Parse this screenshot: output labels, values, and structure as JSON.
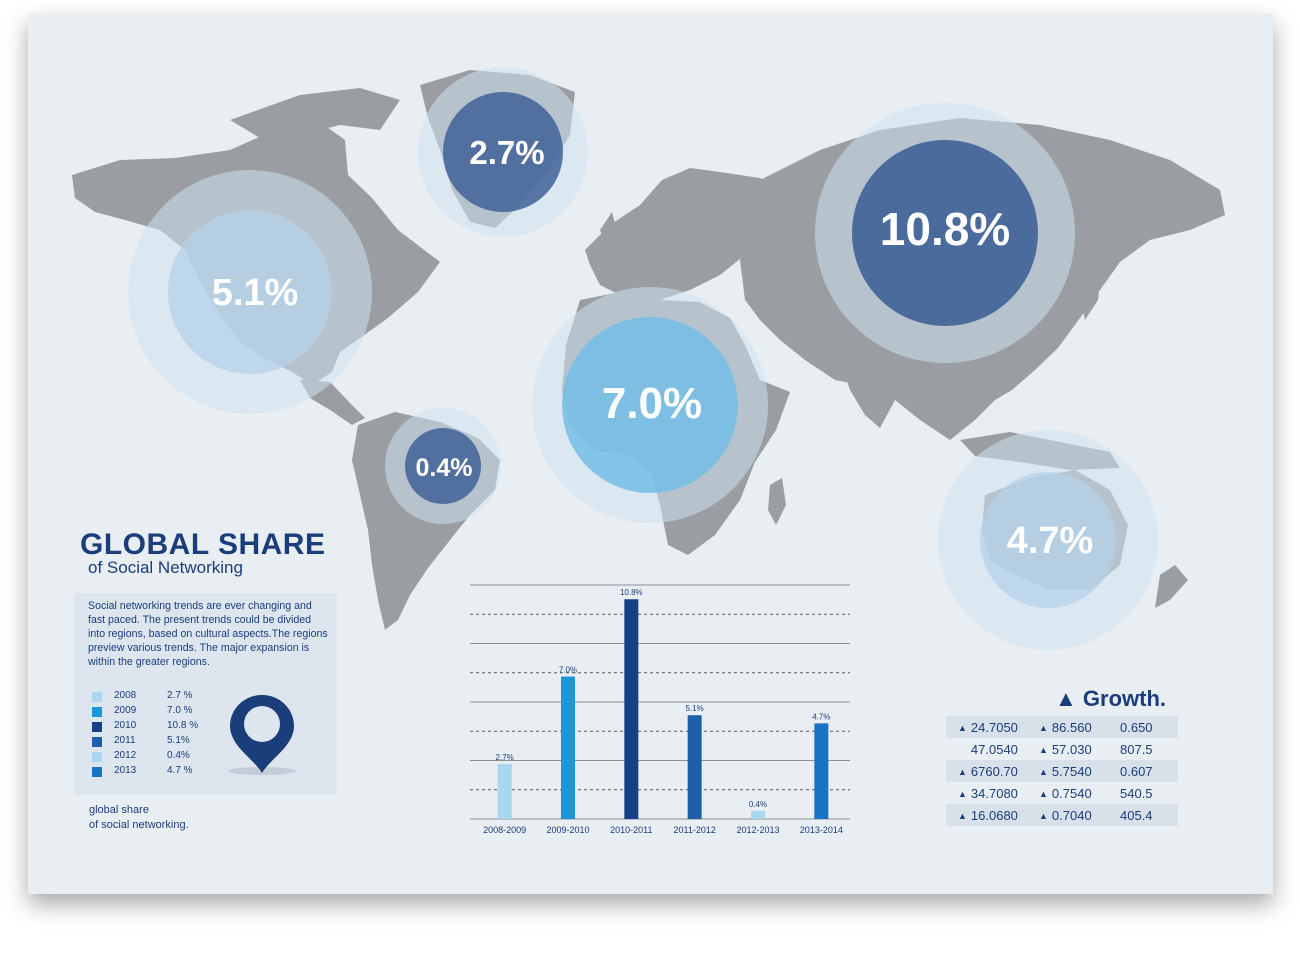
{
  "colors": {
    "paper": "#e9eef3",
    "land": "#9a9ea3",
    "navy": "#1b3d7a",
    "bubble_dark": "#4a6a96",
    "bubble_light": "#7fc0e8"
  },
  "map": {
    "bubbles": [
      {
        "label": "2.7%",
        "region": "Greenland",
        "style": "dark"
      },
      {
        "label": "5.1%",
        "region": "North America",
        "style": "light"
      },
      {
        "label": "0.4%",
        "region": "South America",
        "style": "dark"
      },
      {
        "label": "7.0%",
        "region": "Africa",
        "style": "light"
      },
      {
        "label": "10.8%",
        "region": "Asia",
        "style": "dark"
      },
      {
        "label": "4.7%",
        "region": "Australia",
        "style": "light"
      }
    ]
  },
  "header": {
    "title": "GLOBAL SHARE",
    "subtitle": "of Social Networking"
  },
  "info": {
    "description": "Social networking trends are ever changing and fast paced. The present trends could be divided into regions, based on cultural aspects.The regions preview various trends. The major expansion is within the greater regions.",
    "pin_icon": "map-pin-icon"
  },
  "legend": [
    {
      "year": "2008",
      "value": "2.7 %",
      "color": "#a9d6f0"
    },
    {
      "year": "2009",
      "value": "7.0 %",
      "color": "#1e95d8"
    },
    {
      "year": "2010",
      "value": "10.8 %",
      "color": "#173f86"
    },
    {
      "year": "2011",
      "value": "5.1%",
      "color": "#1f5ea9"
    },
    {
      "year": "2012",
      "value": "0.4%",
      "color": "#a9d6f0"
    },
    {
      "year": "2013",
      "value": "4.7 %",
      "color": "#1a72c4"
    }
  ],
  "footnote": {
    "line1": "global share",
    "line2": "of social networking."
  },
  "chart_data": {
    "type": "bar",
    "categories": [
      "2008-2009",
      "2009-2010",
      "2010-2011",
      "2011-2012",
      "2012-2013",
      "2013-2014"
    ],
    "values": [
      2.7,
      7.0,
      10.8,
      5.1,
      0.4,
      4.7
    ],
    "value_labels": [
      "2.7%",
      "7.0%",
      "10.8%",
      "5.1%",
      "0.4%",
      "4.7%"
    ],
    "bar_colors": [
      "#a9d6f0",
      "#1e95d8",
      "#173f86",
      "#1f5ea9",
      "#a9d6f0",
      "#1a72c4"
    ],
    "ylim": [
      0,
      11.5
    ],
    "grid": "dashed and solid horizontal lines",
    "title": "",
    "xlabel": "",
    "ylabel": ""
  },
  "growth": {
    "title": "Growth.",
    "rows": [
      [
        {
          "v": "24.7050",
          "up": true
        },
        {
          "v": "86.560",
          "up": true
        },
        {
          "v": "0.650",
          "up": false
        }
      ],
      [
        {
          "v": "47.0540",
          "up": false
        },
        {
          "v": "57.030",
          "up": true
        },
        {
          "v": "807.5",
          "up": false
        }
      ],
      [
        {
          "v": "6760.70",
          "up": true
        },
        {
          "v": "5.7540",
          "up": true
        },
        {
          "v": "0.607",
          "up": false
        }
      ],
      [
        {
          "v": "34.7080",
          "up": true
        },
        {
          "v": "0.7540",
          "up": true
        },
        {
          "v": "540.5",
          "up": false
        }
      ],
      [
        {
          "v": "16.0680",
          "up": true
        },
        {
          "v": "0.7040",
          "up": true
        },
        {
          "v": "405.4",
          "up": false
        }
      ]
    ]
  }
}
